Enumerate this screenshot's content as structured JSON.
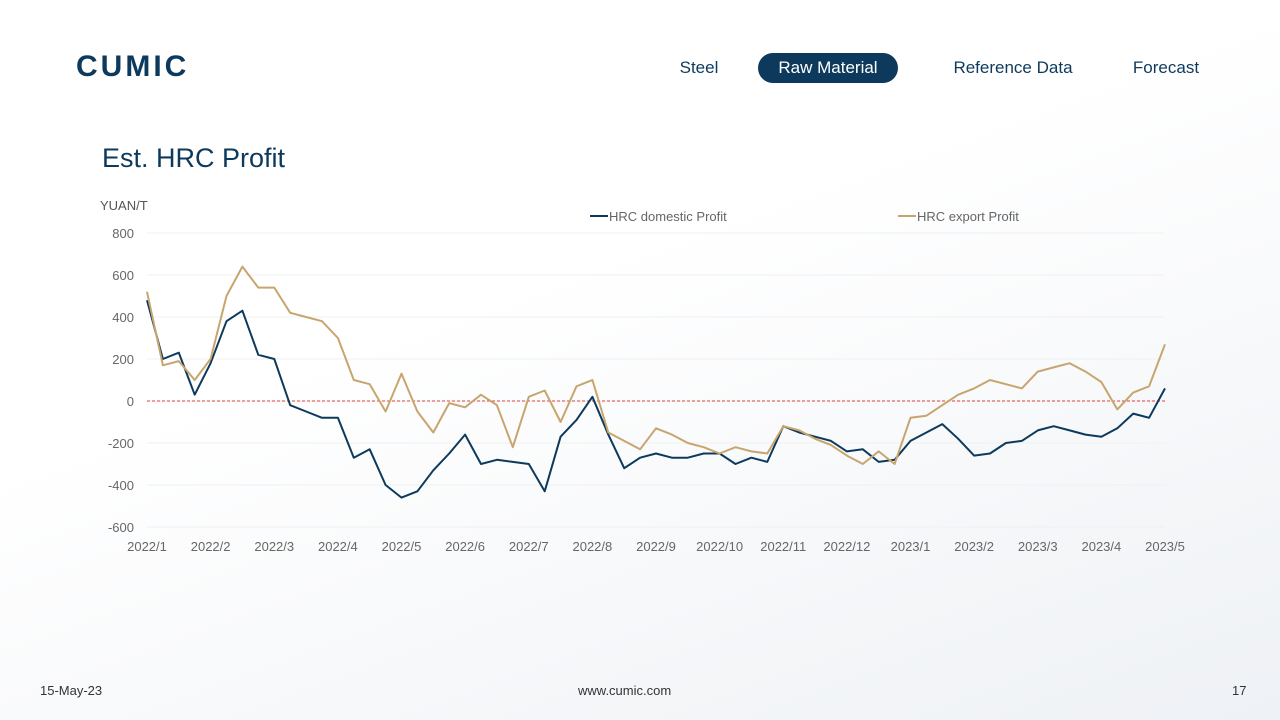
{
  "logo": "CUMIC",
  "nav": {
    "items": [
      "Steel",
      "Raw Material",
      "Reference Data",
      "Forecast"
    ],
    "active": 1
  },
  "footer": {
    "date": "15-May-23",
    "website": "www.cumic.com",
    "page": "17"
  },
  "chart_data": {
    "type": "line",
    "title": "Est. HRC Profit",
    "y_label": "YUAN/T",
    "categories": [
      "2022/1",
      null,
      null,
      null,
      "2022/2",
      null,
      null,
      null,
      "2022/3",
      null,
      null,
      null,
      "2022/4",
      null,
      null,
      null,
      "2022/5",
      null,
      null,
      null,
      "2022/6",
      null,
      null,
      null,
      "2022/7",
      null,
      null,
      null,
      "2022/8",
      null,
      null,
      null,
      "2022/9",
      null,
      null,
      null,
      "2022/10",
      null,
      null,
      null,
      "2022/11",
      null,
      null,
      null,
      "2022/12",
      null,
      null,
      null,
      "2023/1",
      null,
      null,
      null,
      "2023/2",
      null,
      null,
      null,
      "2023/3",
      null,
      null,
      null,
      "2023/4",
      null,
      null,
      null,
      "2023/5"
    ],
    "series": [
      {
        "name": "HRC domestic Profit",
        "color": "#0d3a5c",
        "values": [
          480,
          200,
          230,
          30,
          180,
          380,
          430,
          220,
          200,
          -20,
          -50,
          -80,
          -80,
          -270,
          -230,
          -400,
          -460,
          -430,
          -330,
          -250,
          -160,
          -300,
          -280,
          -290,
          -300,
          -430,
          -170,
          -90,
          20,
          -160,
          -320,
          -270,
          -250,
          -270,
          -270,
          -250,
          -250,
          -300,
          -270,
          -290,
          -120,
          -150,
          -170,
          -190,
          -240,
          -230,
          -290,
          -280,
          -190,
          -150,
          -110,
          -180,
          -260,
          -250,
          -200,
          -190,
          -140,
          -120,
          -140,
          -160,
          -170,
          -130,
          -60,
          -80,
          60
        ]
      },
      {
        "name": "HRC export Profit",
        "color": "#c8a56e",
        "values": [
          520,
          170,
          190,
          100,
          200,
          500,
          640,
          540,
          540,
          420,
          400,
          380,
          300,
          100,
          80,
          -50,
          130,
          -50,
          -150,
          -10,
          -30,
          30,
          -20,
          -220,
          20,
          50,
          -100,
          70,
          100,
          -150,
          -190,
          -230,
          -130,
          -160,
          -200,
          -220,
          -250,
          -220,
          -240,
          -250,
          -120,
          -140,
          -180,
          -210,
          -260,
          -300,
          -240,
          -300,
          -80,
          -70,
          -20,
          30,
          60,
          100,
          80,
          60,
          140,
          160,
          180,
          140,
          90,
          -40,
          40,
          70,
          270
        ]
      }
    ],
    "ylim": [
      -600,
      800
    ],
    "yticks": [
      -600,
      -400,
      -200,
      0,
      200,
      400,
      600,
      800
    ],
    "grid": true,
    "reference_line": 0,
    "reference_color": "#e0403a",
    "legend": "top"
  }
}
